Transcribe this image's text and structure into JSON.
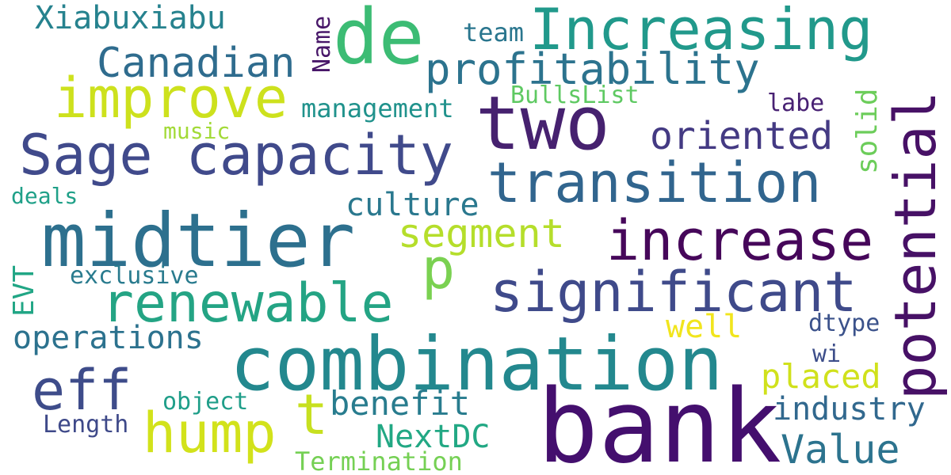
{
  "words": [
    {
      "id": "bank",
      "text": "bank",
      "color": "#440f6e"
    },
    {
      "id": "combination",
      "text": "combination",
      "color": "#23888e"
    },
    {
      "id": "midtier",
      "text": "midtier",
      "color": "#2d708e"
    },
    {
      "id": "de",
      "text": "de",
      "color": "#3cbc74"
    },
    {
      "id": "increasing",
      "text": "Increasing",
      "color": "#21998b"
    },
    {
      "id": "two",
      "text": "two",
      "color": "#46216f"
    },
    {
      "id": "potential",
      "text": "potential",
      "color": "#471166"
    },
    {
      "id": "sage-capacity",
      "text": "Sage capacity",
      "color": "#404a8b"
    },
    {
      "id": "significant",
      "text": "significant",
      "color": "#3f4a8a"
    },
    {
      "id": "increase",
      "text": "increase",
      "color": "#46075a"
    },
    {
      "id": "transition",
      "text": "transition",
      "color": "#31658e"
    },
    {
      "id": "renewable",
      "text": "renewable",
      "color": "#24a484"
    },
    {
      "id": "improve",
      "text": "improve",
      "color": "#cde11d"
    },
    {
      "id": "eff",
      "text": "eff",
      "color": "#3e4c8a"
    },
    {
      "id": "hump",
      "text": "hump",
      "color": "#d2e21b"
    },
    {
      "id": "t",
      "text": "t",
      "color": "#c7e020"
    },
    {
      "id": "p",
      "text": "p",
      "color": "#7ad151"
    },
    {
      "id": "profitability",
      "text": "profitability",
      "color": "#2c738e"
    },
    {
      "id": "canadian",
      "text": "Canadian",
      "color": "#2f6c8e"
    },
    {
      "id": "oriented",
      "text": "oriented",
      "color": "#443a83"
    },
    {
      "id": "segment",
      "text": "segment",
      "color": "#b5de2b"
    },
    {
      "id": "xiabuxiabu",
      "text": "Xiabuxiabu",
      "color": "#26828e"
    },
    {
      "id": "value",
      "text": "Value",
      "color": "#2c738e"
    },
    {
      "id": "operations",
      "text": "operations",
      "color": "#2c728e"
    },
    {
      "id": "benefit",
      "text": "benefit",
      "color": "#287c8e"
    },
    {
      "id": "placed",
      "text": "placed",
      "color": "#d0e11c"
    },
    {
      "id": "industry",
      "text": "industry",
      "color": "#31688e"
    },
    {
      "id": "nextdc",
      "text": "NextDC",
      "color": "#22a884"
    },
    {
      "id": "well",
      "text": "well",
      "color": "#f1e51d"
    },
    {
      "id": "culture",
      "text": "culture",
      "color": "#2a788e"
    },
    {
      "id": "management",
      "text": "management",
      "color": "#20928c"
    },
    {
      "id": "solid",
      "text": "solid",
      "color": "#6ccd5a"
    },
    {
      "id": "termination",
      "text": "Termination",
      "color": "#75d054"
    },
    {
      "id": "team",
      "text": "team",
      "color": "#2a768e"
    },
    {
      "id": "exclusive",
      "text": "exclusive",
      "color": "#297b8e"
    },
    {
      "id": "evt",
      "text": "EVT",
      "color": "#21a685"
    },
    {
      "id": "bullslist",
      "text": "BullsList",
      "color": "#5ec962"
    },
    {
      "id": "name",
      "text": "Name",
      "color": "#481769"
    },
    {
      "id": "dtype",
      "text": "dtype",
      "color": "#3b528b"
    },
    {
      "id": "object",
      "text": "object",
      "color": "#1f9e89"
    },
    {
      "id": "length",
      "text": "Length",
      "color": "#3e4989"
    },
    {
      "id": "labe",
      "text": "labe",
      "color": "#482173"
    },
    {
      "id": "music",
      "text": "music",
      "color": "#a2da37"
    },
    {
      "id": "deals",
      "text": "deals",
      "color": "#1fa088"
    },
    {
      "id": "wi",
      "text": "wi",
      "color": "#3d4e8a"
    }
  ]
}
